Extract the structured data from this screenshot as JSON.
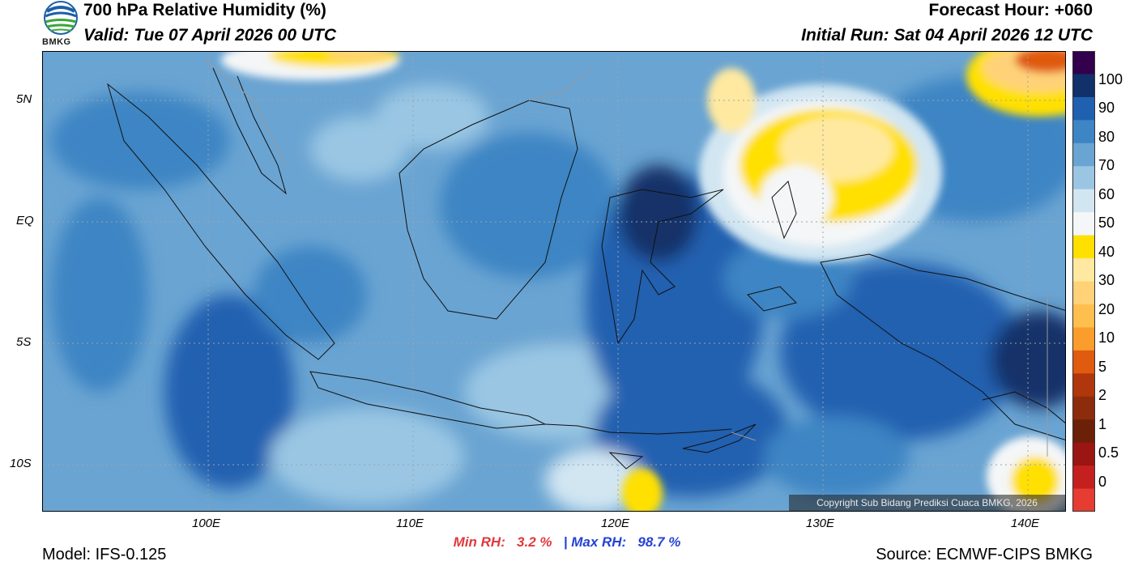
{
  "header": {
    "title": "700 hPa Relative Humidity (%)",
    "valid": "Valid: Tue 07 April 2026 00 UTC",
    "forecast_hour": "Forecast Hour: +060",
    "initial_run": "Initial Run: Sat 04 April 2026 12 UTC",
    "logo_text": "BMKG"
  },
  "map": {
    "lat_labels": [
      "5N",
      "EQ",
      "5S",
      "10S"
    ],
    "lon_labels": [
      "100E",
      "110E",
      "120E",
      "130E",
      "140E"
    ],
    "copyright": "Copyright Sub Bidang Prediksi Cuaca BMKG, 2026"
  },
  "colorbar": {
    "labels": [
      "100",
      "90",
      "80",
      "70",
      "60",
      "50",
      "40",
      "30",
      "20",
      "10",
      "5",
      "2",
      "1",
      "0.5",
      "0"
    ],
    "colors": [
      "#32004d",
      "#123069",
      "#2060b0",
      "#3d85c4",
      "#6aa4d2",
      "#9ac6e3",
      "#d2e6f2",
      "#f4f6f7",
      "#ffe000",
      "#ffe9a0",
      "#ffd278",
      "#ffbf4f",
      "#fb9d2c",
      "#e05a10",
      "#b0360c",
      "#8c2c0c",
      "#6a2108",
      "#9b1512",
      "#c42020",
      "#e63c32"
    ]
  },
  "stats": {
    "min_label": "Min RH:",
    "min_value": "3.2 %",
    "separator": "|",
    "max_label": "Max RH:",
    "max_value": "98.7 %"
  },
  "footer": {
    "model": "Model: IFS-0.125",
    "source": "Source: ECMWF-CIPS BMKG"
  }
}
